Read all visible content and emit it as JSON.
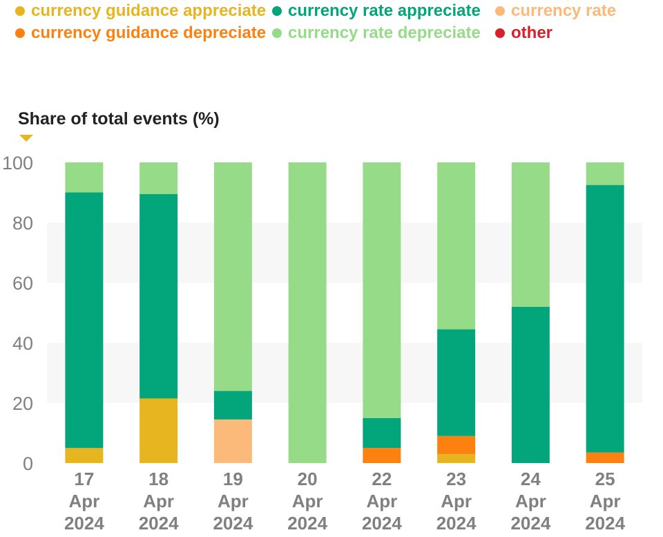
{
  "legend": [
    {
      "label": "currency guidance appreciate",
      "color": "#e6b520"
    },
    {
      "label": "currency rate appreciate",
      "color": "#03a57b"
    },
    {
      "label": "currency rate",
      "color": "#fbb97a"
    },
    {
      "label": "currency guidance depreciate",
      "color": "#fd8110"
    },
    {
      "label": "currency rate depreciate",
      "color": "#96dc88"
    },
    {
      "label": "other",
      "color": "#d7202a"
    }
  ],
  "chart_data": {
    "type": "bar",
    "stacked": true,
    "ylabel": "Share of total events (%)",
    "ylim": [
      0,
      100
    ],
    "yticks": [
      0,
      20,
      40,
      60,
      80,
      100
    ],
    "grid": "alternating horizontal bands",
    "legend_position": "top",
    "categories": [
      [
        "17",
        "Apr",
        "2024"
      ],
      [
        "18",
        "Apr",
        "2024"
      ],
      [
        "19",
        "Apr",
        "2024"
      ],
      [
        "20",
        "Apr",
        "2024"
      ],
      [
        "22",
        "Apr",
        "2024"
      ],
      [
        "23",
        "Apr",
        "2024"
      ],
      [
        "24",
        "Apr",
        "2024"
      ],
      [
        "25",
        "Apr",
        "2024"
      ]
    ],
    "series": [
      {
        "name": "currency guidance appreciate",
        "color": "#e6b520",
        "values": [
          5,
          21.5,
          0,
          0,
          0,
          3,
          0,
          0
        ]
      },
      {
        "name": "currency guidance depreciate",
        "color": "#fd8110",
        "values": [
          0,
          0,
          0,
          0,
          5,
          6,
          0,
          3.5
        ]
      },
      {
        "name": "currency rate",
        "color": "#fbb97a",
        "values": [
          0,
          0,
          14.5,
          0,
          0,
          0,
          0,
          0
        ]
      },
      {
        "name": "currency rate appreciate",
        "color": "#03a57b",
        "values": [
          85,
          68,
          9.5,
          0,
          10,
          35.5,
          52,
          89
        ]
      },
      {
        "name": "currency rate depreciate",
        "color": "#96dc88",
        "values": [
          10,
          10.5,
          76,
          100,
          85,
          55.5,
          48,
          7.5
        ]
      },
      {
        "name": "other",
        "color": "#d7202a",
        "values": [
          0,
          0,
          0,
          0,
          0,
          0,
          0,
          0
        ]
      }
    ]
  }
}
